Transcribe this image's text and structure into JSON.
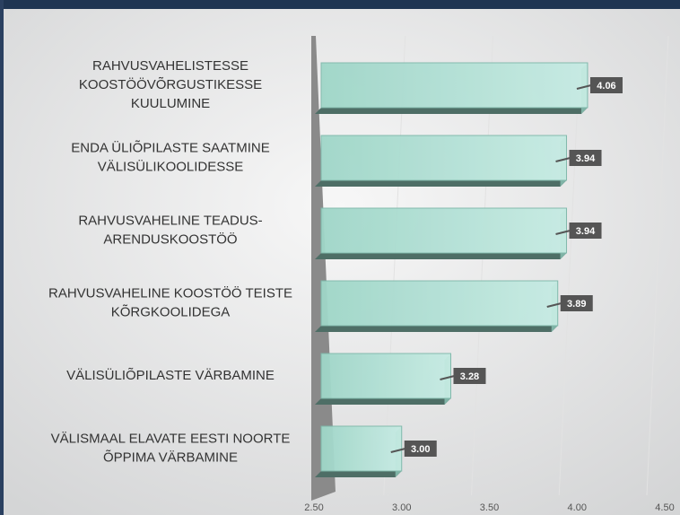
{
  "chart_data": {
    "type": "bar",
    "orientation": "horizontal",
    "categories": [
      "RAHVUSVAHELISTESSE\nKOOSTÖÖVÕRGUSTIKESSE\nKUULUMINE",
      "ENDA ÜLIÕPILASTE SAATMINE\nVÄLISÜLIKOOLIDESSE",
      "RAHVUSVAHELINE TEADUS-\nARENDUSKOOSTÖÖ",
      "RAHVUSVAHELINE KOOSTÖÖ TEISTE\nKÕRGKOOLIDEGA",
      "VÄLISÜLIÕPILASTE VÄRBAMINE",
      "VÄLISMAAL ELAVATE EESTI NOORTE\nÕPPIMA VÄRBAMINE"
    ],
    "values": [
      4.06,
      3.94,
      3.94,
      3.89,
      3.28,
      3.0
    ],
    "value_labels": [
      "4.06",
      "3.94",
      "3.94",
      "3.89",
      "3.28",
      "3.00"
    ],
    "color": "#a9ddd0",
    "xlim": [
      2.5,
      4.5
    ],
    "xticks": [
      {
        "value": 2.5,
        "label": "2.50"
      },
      {
        "value": 3.0,
        "label": "3.00"
      },
      {
        "value": 3.5,
        "label": "3.50"
      },
      {
        "value": 4.0,
        "label": "4.00"
      },
      {
        "value": 4.5,
        "label": "4.50"
      }
    ],
    "grid": true
  }
}
